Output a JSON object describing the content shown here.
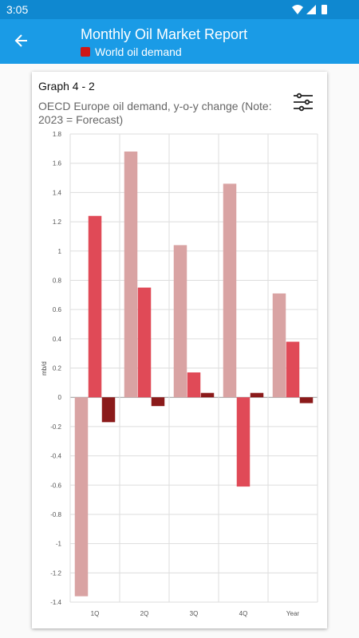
{
  "status_bar": {
    "time": "3:05"
  },
  "app_bar": {
    "title": "Monthly Oil Market Report",
    "subtitle": "World oil demand",
    "accent": "#1a9be6"
  },
  "card": {
    "title": "Graph 4 - 2",
    "subtitle": "OECD Europe oil demand, y-o-y change (Note: 2023 = Forecast)",
    "icons": {
      "filter": "sliders-icon",
      "back": "arrow-left-icon"
    }
  },
  "chart_data": {
    "type": "bar",
    "categories": [
      "1Q",
      "2Q",
      "3Q",
      "4Q",
      "Year"
    ],
    "series": [
      {
        "values": [
          -1.36,
          1.68,
          1.04,
          1.46,
          0.71
        ],
        "color": "#d9a3a3"
      },
      {
        "values": [
          1.24,
          0.75,
          0.17,
          -0.61,
          0.38
        ],
        "color": "#e04a57"
      },
      {
        "values": [
          -0.17,
          -0.06,
          0.03,
          0.03,
          -0.04
        ],
        "color": "#8b1a1a"
      }
    ],
    "ylabel": "mb/d",
    "ylim": [
      -1.4,
      1.8
    ],
    "yticks": [
      "1.8",
      "1.6",
      "1.4",
      "1.2",
      "1",
      "0.8",
      "0.6",
      "0.4",
      "0.2",
      "0",
      "-0.2",
      "-0.4",
      "-0.6",
      "-0.8",
      "-1",
      "-1.2",
      "-1.4"
    ],
    "grid": true
  }
}
